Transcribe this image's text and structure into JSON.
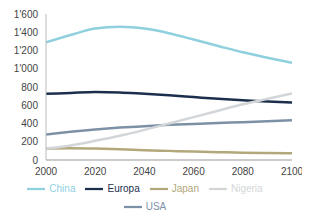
{
  "chart_data": {
    "type": "line",
    "x": [
      2000,
      2010,
      2020,
      2030,
      2040,
      2050,
      2060,
      2070,
      2080,
      2090,
      2100
    ],
    "series": [
      {
        "name": "Europa",
        "color": "#1b2f4d",
        "values": [
          725,
          735,
          745,
          740,
          725,
          710,
          690,
          670,
          655,
          640,
          630
        ]
      },
      {
        "name": "USA",
        "color": "#7d91a6",
        "values": [
          280,
          310,
          335,
          355,
          370,
          385,
          395,
          405,
          415,
          425,
          435
        ]
      },
      {
        "name": "Japan",
        "color": "#b3a87b",
        "values": [
          127,
          128,
          125,
          118,
          108,
          100,
          92,
          86,
          80,
          77,
          75
        ]
      },
      {
        "name": "China",
        "color": "#8fd0df",
        "values": [
          1290,
          1370,
          1440,
          1460,
          1440,
          1390,
          1320,
          1250,
          1180,
          1120,
          1065
        ]
      },
      {
        "name": "Nigeria",
        "color": "#d3d6d9",
        "values": [
          125,
          160,
          210,
          265,
          330,
          400,
          470,
          540,
          610,
          670,
          730
        ]
      }
    ],
    "xlim": [
      2000,
      2100
    ],
    "xticks": [
      2000,
      2020,
      2040,
      2060,
      2080,
      2100
    ],
    "ylim": [
      0,
      1600
    ],
    "yticks": [
      0,
      200,
      400,
      600,
      800,
      {
        "value": 1000,
        "label": "1'000"
      },
      {
        "value": 1200,
        "label": "1'200"
      },
      {
        "value": 1400,
        "label": "1'400"
      },
      {
        "value": 1600,
        "label": "1'600"
      }
    ],
    "grid": false,
    "legend": "bottom"
  }
}
